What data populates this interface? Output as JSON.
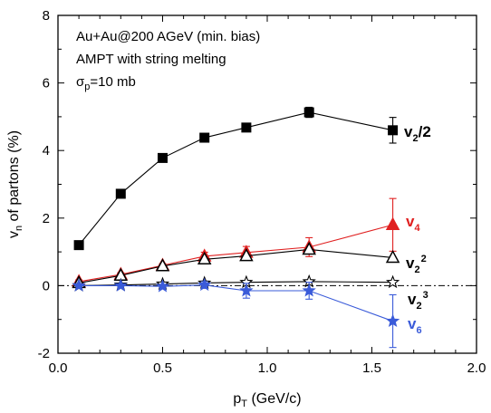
{
  "chart_data": {
    "type": "line",
    "title": "",
    "xlabel": "pT (GeV/c)",
    "ylabel": "vn of partons (%)",
    "xlim": [
      0.0,
      2.0
    ],
    "ylim": [
      -2,
      8
    ],
    "xticks": [
      "0.0",
      "0.5",
      "1.0",
      "1.5",
      "2.0"
    ],
    "yticks": [
      "-2",
      "0",
      "2",
      "4",
      "6",
      "8"
    ],
    "annotations": [
      "Au+Au@200 AGeV (min. bias)",
      "AMPT with string melting",
      "σp=10 mb"
    ],
    "series": [
      {
        "name": "v2/2",
        "color": "#000000",
        "marker": "filled-square",
        "x": [
          0.1,
          0.3,
          0.5,
          0.7,
          0.9,
          1.2,
          1.6
        ],
        "y": [
          1.2,
          2.72,
          3.78,
          4.38,
          4.68,
          5.13,
          4.6
        ],
        "yerr": [
          0.05,
          0.05,
          0.05,
          0.05,
          0.08,
          0.15,
          0.38
        ]
      },
      {
        "name": "v4",
        "color": "#e02020",
        "marker": "filled-triangle",
        "x": [
          0.1,
          0.3,
          0.5,
          0.7,
          0.9,
          1.2,
          1.6
        ],
        "y": [
          0.12,
          0.33,
          0.6,
          0.87,
          0.98,
          1.14,
          1.8
        ],
        "yerr": [
          0.05,
          0.05,
          0.05,
          0.12,
          0.18,
          0.28,
          0.78
        ]
      },
      {
        "name": "v2^2",
        "color": "#000000",
        "marker": "open-triangle",
        "x": [
          0.1,
          0.3,
          0.5,
          0.7,
          0.9,
          1.2,
          1.6
        ],
        "y": [
          0.08,
          0.3,
          0.58,
          0.78,
          0.88,
          1.07,
          0.83
        ],
        "yerr": [
          0,
          0,
          0,
          0,
          0,
          0,
          0
        ]
      },
      {
        "name": "v2^3",
        "color": "#000000",
        "marker": "open-star",
        "x": [
          0.1,
          0.3,
          0.5,
          0.7,
          0.9,
          1.2,
          1.6
        ],
        "y": [
          0.0,
          0.02,
          0.05,
          0.08,
          0.1,
          0.12,
          0.1
        ],
        "yerr": [
          0,
          0,
          0,
          0,
          0,
          0,
          0
        ]
      },
      {
        "name": "v6",
        "color": "#3a5bd9",
        "marker": "filled-star",
        "x": [
          0.1,
          0.3,
          0.5,
          0.7,
          0.9,
          1.2,
          1.6
        ],
        "y": [
          0.0,
          0.0,
          -0.02,
          0.02,
          -0.15,
          -0.15,
          -1.05
        ],
        "yerr": [
          0.02,
          0.02,
          0.05,
          0.1,
          0.22,
          0.25,
          0.78
        ]
      }
    ],
    "series_labels": [
      {
        "base": "v",
        "sub": "2",
        "sup": "",
        "suffix": "/2",
        "color": "#000000"
      },
      {
        "base": "v",
        "sub": "4",
        "sup": "",
        "suffix": "",
        "color": "#e02020"
      },
      {
        "base": "v",
        "sub": "2",
        "sup": "2",
        "suffix": "",
        "color": "#000000"
      },
      {
        "base": "v",
        "sub": "2",
        "sup": "3",
        "suffix": "",
        "color": "#000000"
      },
      {
        "base": "v",
        "sub": "6",
        "sup": "",
        "suffix": "",
        "color": "#3a5bd9"
      }
    ],
    "grid": false,
    "reference_line": {
      "y": 0,
      "style": "dash-dot"
    }
  }
}
